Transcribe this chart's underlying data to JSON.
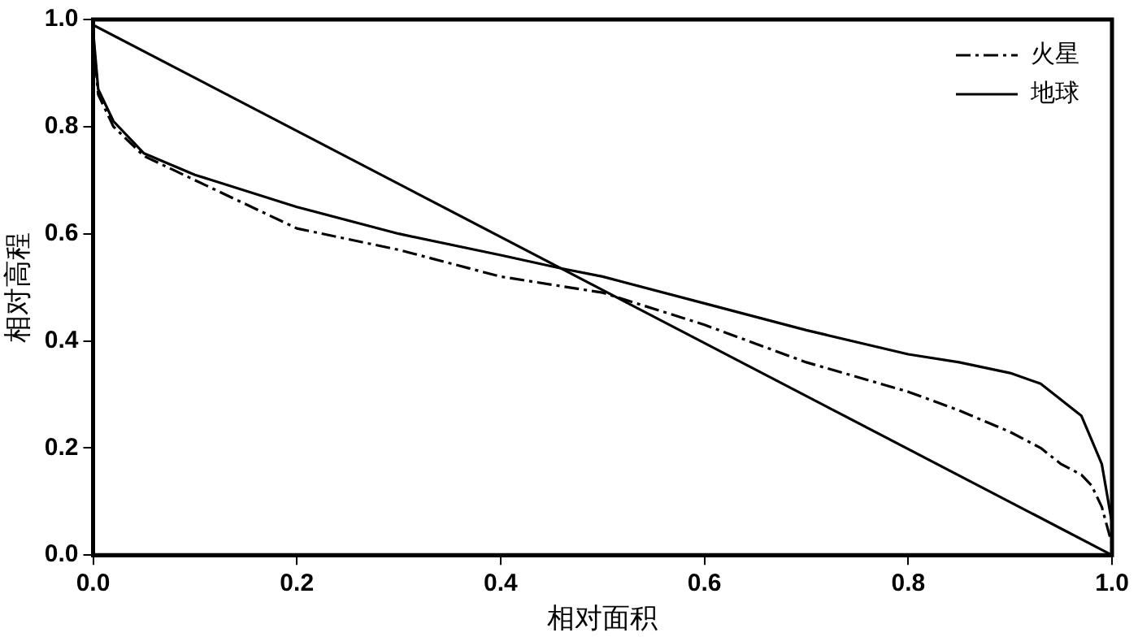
{
  "chart_data": {
    "type": "line",
    "xlabel": "相对面积",
    "ylabel": "相对高程",
    "xlim": [
      0,
      1
    ],
    "ylim": [
      0,
      1
    ],
    "xticks": [
      {
        "value": 0,
        "label": "0.0"
      },
      0.2,
      0.4,
      0.6,
      0.8,
      {
        "value": 1,
        "label": "1.0"
      }
    ],
    "yticks": [
      {
        "value": 0,
        "label": "0.0"
      },
      0.2,
      0.4,
      0.6,
      0.8,
      {
        "value": 1,
        "label": "1.0"
      }
    ],
    "grid": false,
    "legend": "top right",
    "marker": "none",
    "series": [
      {
        "name": "火星",
        "color": "#000000",
        "line_style": "dashdot",
        "x": [
          0,
          0.005,
          0.02,
          0.05,
          0.1,
          0.2,
          0.3,
          0.4,
          0.5,
          0.6,
          0.7,
          0.8,
          0.85,
          0.9,
          0.93,
          0.95,
          0.97,
          0.98,
          0.99,
          1
        ],
        "values": [
          0.97,
          0.86,
          0.8,
          0.745,
          0.7,
          0.61,
          0.57,
          0.52,
          0.49,
          0.43,
          0.36,
          0.305,
          0.27,
          0.23,
          0.2,
          0.17,
          0.15,
          0.13,
          0.09,
          0.02
        ]
      },
      {
        "name": "地球",
        "color": "#000000",
        "line_style": "solid",
        "x": [
          0,
          0.005,
          0.02,
          0.05,
          0.1,
          0.2,
          0.3,
          0.4,
          0.46,
          0.5,
          0.6,
          0.7,
          0.8,
          0.85,
          0.9,
          0.93,
          0.95,
          0.97,
          0.98,
          0.99,
          1
        ],
        "values": [
          0.98,
          0.87,
          0.81,
          0.75,
          0.71,
          0.65,
          0.6,
          0.56,
          0.535,
          0.52,
          0.47,
          0.42,
          0.375,
          0.36,
          0.34,
          0.32,
          0.29,
          0.26,
          0.215,
          0.17,
          0.06
        ]
      },
      {
        "color": "#000000",
        "line_style": "solid",
        "x": [
          0,
          1
        ],
        "values": [
          0.99,
          0
        ]
      }
    ]
  }
}
